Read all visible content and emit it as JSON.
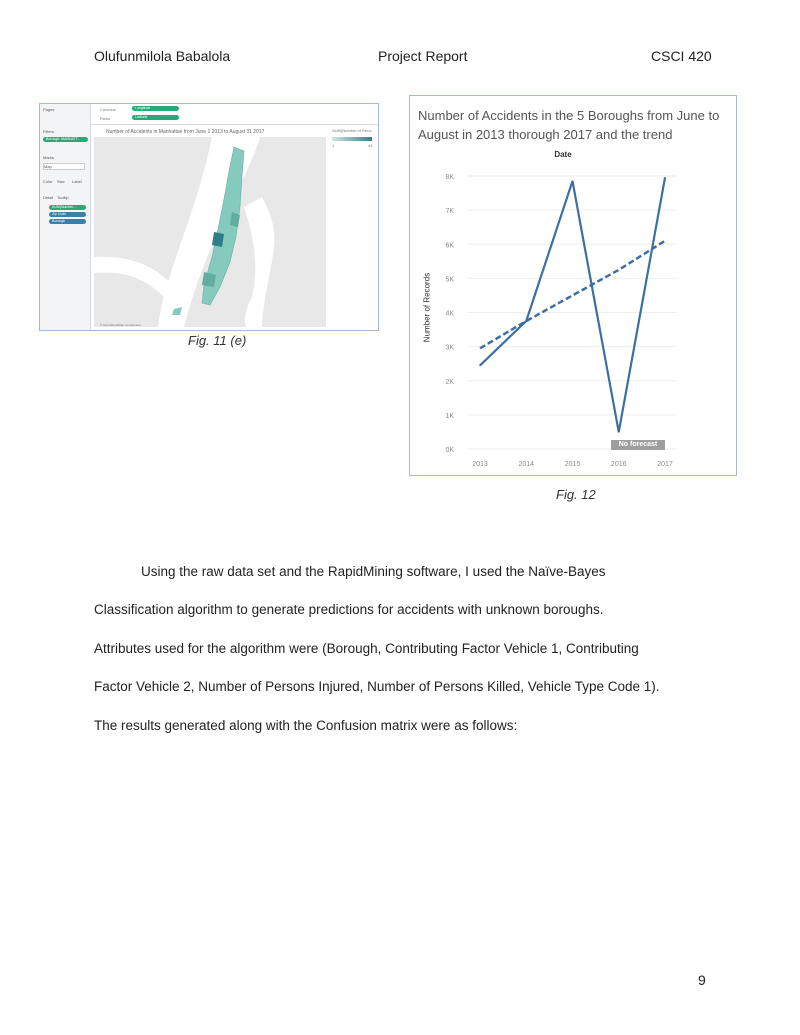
{
  "header": {
    "author": "Olufunmilola Babalola",
    "title": "Project Report",
    "course": "CSCI 420"
  },
  "fig11": {
    "caption": "Fig. 11 (e)",
    "map_title": "Number of Accidents in Manhattan from June 1 2013 to August 31 2017",
    "sidebar": {
      "pages": "Pages",
      "filters": "Filters",
      "filter_pill": "Borough: MANHATT..",
      "marks": "Marks",
      "mark_type": "Map",
      "mark_buttons": [
        "Color",
        "Size",
        "Label",
        "Detail",
        "Tooltip"
      ],
      "mark_pills": [
        "SUM(Number...",
        "Zip Code",
        "Borough"
      ]
    },
    "shelves": {
      "columns_label": "Columns",
      "columns_value": "Longitude",
      "rows_label": "Rows",
      "rows_value": "Latitude"
    },
    "legend": {
      "title": "SUM(Number of Reco..",
      "min": "1",
      "max": "43"
    },
    "attribution": "© OpenStreetMap contributors",
    "colors": {
      "map_bg": "#e8e8e8",
      "water": "#ffffff",
      "choropleth": "#86c9bd",
      "choropleth_dark": "#2f7f8a",
      "pill_green": "#2aa876"
    }
  },
  "fig12": {
    "caption": "Fig. 12",
    "chart_data": {
      "type": "line",
      "title": "Number of Accidents in the 5 Boroughs from June to August in 2013 thorough 2017 and the trend",
      "xlabel": "Date",
      "ylabel": "Number of Records",
      "categories": [
        "2013",
        "2014",
        "2015",
        "2016",
        "2017"
      ],
      "ylim": [
        0,
        8000
      ],
      "yticks": [
        "0K",
        "1K",
        "2K",
        "3K",
        "4K",
        "5K",
        "6K",
        "7K",
        "8K"
      ],
      "series": [
        {
          "values": [
            2450,
            3750,
            7850,
            500,
            7950
          ],
          "style": "solid",
          "color": "#3e6fa3"
        }
      ],
      "trend": {
        "values": [
          2950,
          3750,
          4500,
          5250,
          6100
        ],
        "style": "dashed",
        "color": "#3e6fa3"
      },
      "annotation": "No forecast",
      "grid": true
    }
  },
  "body": {
    "lines": [
      "Using the raw data set and the RapidMining software, I used the Naïve-Bayes",
      "Classification algorithm to generate predictions for accidents with unknown boroughs.",
      "Attributes used for the algorithm were (Borough, Contributing Factor Vehicle 1, Contributing",
      "Factor Vehicle 2, Number of Persons Injured, Number of Persons Killed, Vehicle Type Code 1).",
      "The results generated along with the Confusion matrix were as follows:"
    ]
  },
  "footer": {
    "page_number": "9"
  }
}
